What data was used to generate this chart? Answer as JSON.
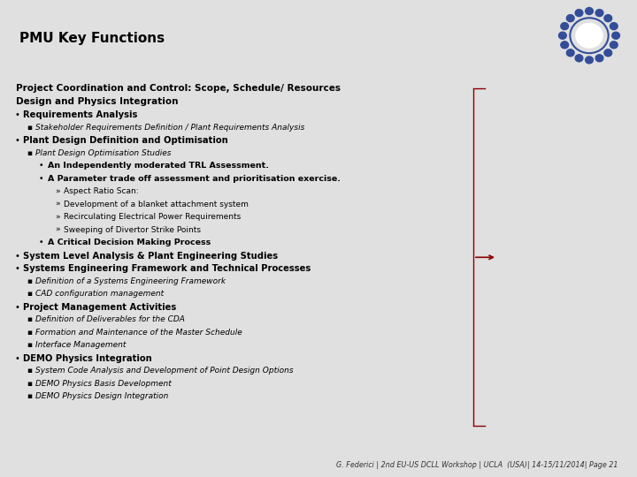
{
  "title": "PMU Key Functions",
  "subtitle": "Project Coordination and Control: Scope, Schedule/ Resources\nDesign and Physics Integration",
  "bg_color": "#e0e0e0",
  "content_bg": "#ffffff",
  "title_bg": "#d0d0d0",
  "title_color": "#000000",
  "title_fontsize": 11,
  "subtitle_fontsize": 7.5,
  "footer": "G. Federici | 2nd EU-US DCLL Workshop | UCLA  (USA)| 14-15/11/2014| Page 21",
  "bracket_color": "#8b0000",
  "lines": [
    {
      "text": "Requirements Analysis",
      "level": 0,
      "bold": true,
      "italic": false
    },
    {
      "text": "Stakeholder Requirements Definition / Plant Requirements Analysis",
      "level": 1,
      "bold": false,
      "italic": true
    },
    {
      "text": "Plant Design Definition and Optimisation",
      "level": 0,
      "bold": true,
      "italic": false
    },
    {
      "text": "Plant Design Optimisation Studies",
      "level": 1,
      "bold": false,
      "italic": true
    },
    {
      "text": "An Independently moderated TRL Assessment.",
      "level": 2,
      "bold": true,
      "italic": false
    },
    {
      "text": "A Parameter trade off assessment and prioritisation exercise.",
      "level": 2,
      "bold": true,
      "italic": false
    },
    {
      "text": "Aspect Ratio Scan:",
      "level": 3,
      "bold": false,
      "italic": false
    },
    {
      "text": "Development of a blanket attachment system",
      "level": 3,
      "bold": false,
      "italic": false
    },
    {
      "text": "Recirculating Electrical Power Requirements",
      "level": 3,
      "bold": false,
      "italic": false
    },
    {
      "text": "Sweeping of Divertor Strike Points",
      "level": 3,
      "bold": false,
      "italic": false
    },
    {
      "text": "A Critical Decision Making Process",
      "level": 2,
      "bold": true,
      "italic": false
    },
    {
      "text": "System Level Analysis & Plant Engineering Studies",
      "level": 0,
      "bold": true,
      "italic": false
    },
    {
      "text": "Systems Engineering Framework and Technical Processes",
      "level": 0,
      "bold": true,
      "italic": false
    },
    {
      "text": "Definition of a Systems Engineering Framework",
      "level": 1,
      "bold": false,
      "italic": true
    },
    {
      "text": "CAD configuration management",
      "level": 1,
      "bold": false,
      "italic": true
    },
    {
      "text": "Project Management Activities",
      "level": 0,
      "bold": true,
      "italic": false
    },
    {
      "text": "Definition of Deliverables for the CDA",
      "level": 1,
      "bold": false,
      "italic": true
    },
    {
      "text": "Formation and Maintenance of the Master Schedule",
      "level": 1,
      "bold": false,
      "italic": true
    },
    {
      "text": "Interface Management",
      "level": 1,
      "bold": false,
      "italic": true
    },
    {
      "text": "DEMO Physics Integration",
      "level": 0,
      "bold": true,
      "italic": false
    },
    {
      "text": "System Code Analysis and Development of Point Design Options",
      "level": 1,
      "bold": false,
      "italic": true
    },
    {
      "text": "DEMO Physics Basis Development",
      "level": 1,
      "bold": false,
      "italic": true
    },
    {
      "text": "DEMO Physics Design Integration",
      "level": 1,
      "bold": false,
      "italic": true
    }
  ]
}
